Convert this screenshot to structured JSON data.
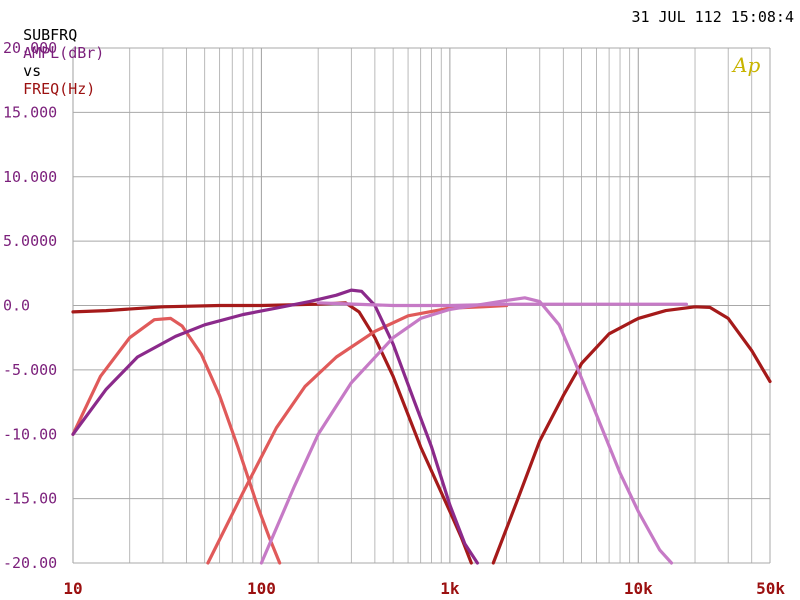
{
  "header": {
    "prefix": "SUBFRQ",
    "y_param": "AMPL(dBr)",
    "vs": "vs",
    "x_param": "FREQ(Hz)",
    "timestamp": "31 JUL 112 15:08:4"
  },
  "logo_text": "Ap",
  "colors": {
    "y_axis_text": "#7b1f7b",
    "x_axis_text": "#9b1010",
    "grid": "#a8a8a8",
    "logo": "#c8b400"
  },
  "chart_data": {
    "type": "line",
    "xscale": "log",
    "xlim": [
      10,
      50000
    ],
    "ylim": [
      -20,
      20
    ],
    "grid": true,
    "y_ticks": [
      {
        "value": 20,
        "label": "20.000"
      },
      {
        "value": 15,
        "label": "15.000"
      },
      {
        "value": 10,
        "label": "10.000"
      },
      {
        "value": 5,
        "label": "5.0000"
      },
      {
        "value": 0,
        "label": "0.0"
      },
      {
        "value": -5,
        "label": "-5.000"
      },
      {
        "value": -10,
        "label": "-10.00"
      },
      {
        "value": -15,
        "label": "-15.00"
      },
      {
        "value": -20,
        "label": "-20.00"
      }
    ],
    "x_ticks": [
      {
        "value": 10,
        "label": "10"
      },
      {
        "value": 100,
        "label": "100"
      },
      {
        "value": 1000,
        "label": "1k"
      },
      {
        "value": 10000,
        "label": "10k"
      },
      {
        "value": 50000,
        "label": "50k"
      }
    ],
    "series": [
      {
        "color": "#a51a1a",
        "points": [
          [
            10,
            -0.5
          ],
          [
            15,
            -0.4
          ],
          [
            30,
            -0.1
          ],
          [
            60,
            0.0
          ],
          [
            100,
            0.0
          ],
          [
            200,
            0.1
          ],
          [
            280,
            0.2
          ],
          [
            330,
            -0.5
          ],
          [
            400,
            -2.5
          ],
          [
            500,
            -5.5
          ],
          [
            700,
            -11
          ],
          [
            1000,
            -16
          ],
          [
            1150,
            -18
          ],
          [
            1300,
            -20
          ]
        ]
      },
      {
        "color": "#a51a1a",
        "points": [
          [
            1700,
            -20
          ],
          [
            2300,
            -15
          ],
          [
            3000,
            -10.5
          ],
          [
            4000,
            -7
          ],
          [
            5000,
            -4.5
          ],
          [
            7000,
            -2.2
          ],
          [
            10000,
            -1.0
          ],
          [
            14000,
            -0.4
          ],
          [
            20000,
            -0.1
          ],
          [
            24000,
            -0.15
          ],
          [
            30000,
            -1.0
          ],
          [
            40000,
            -3.5
          ],
          [
            50000,
            -5.9
          ]
        ]
      },
      {
        "color": "#e05a5a",
        "points": [
          [
            10,
            -10
          ],
          [
            14,
            -5.5
          ],
          [
            20,
            -2.5
          ],
          [
            27,
            -1.1
          ],
          [
            33,
            -1.0
          ],
          [
            38,
            -1.6
          ],
          [
            48,
            -3.8
          ],
          [
            60,
            -7
          ],
          [
            75,
            -11
          ],
          [
            95,
            -15.5
          ],
          [
            110,
            -18
          ],
          [
            125,
            -20
          ]
        ]
      },
      {
        "color": "#e05a5a",
        "points": [
          [
            52,
            -20
          ],
          [
            80,
            -14.5
          ],
          [
            120,
            -9.5
          ],
          [
            170,
            -6.3
          ],
          [
            250,
            -4.0
          ],
          [
            400,
            -2.0
          ],
          [
            600,
            -0.8
          ],
          [
            1000,
            -0.2
          ],
          [
            1500,
            -0.1
          ],
          [
            2000,
            0.0
          ]
        ]
      },
      {
        "color": "#8b2a8b",
        "points": [
          [
            10,
            -10
          ],
          [
            15,
            -6.5
          ],
          [
            22,
            -4
          ],
          [
            35,
            -2.4
          ],
          [
            50,
            -1.5
          ],
          [
            80,
            -0.7
          ],
          [
            120,
            -0.2
          ],
          [
            180,
            0.3
          ],
          [
            250,
            0.8
          ],
          [
            300,
            1.2
          ],
          [
            340,
            1.1
          ],
          [
            400,
            0.0
          ],
          [
            500,
            -3
          ],
          [
            650,
            -7.5
          ],
          [
            800,
            -11
          ],
          [
            1000,
            -15.5
          ],
          [
            1200,
            -18.5
          ],
          [
            1400,
            -20
          ]
        ]
      },
      {
        "color": "#c67ac6",
        "points": [
          [
            100,
            -20
          ],
          [
            150,
            -14
          ],
          [
            200,
            -10
          ],
          [
            300,
            -6
          ],
          [
            500,
            -2.5
          ],
          [
            700,
            -1.0
          ],
          [
            1000,
            -0.3
          ],
          [
            1500,
            0.1
          ],
          [
            2000,
            0.4
          ],
          [
            2500,
            0.6
          ],
          [
            3000,
            0.3
          ],
          [
            3800,
            -1.5
          ],
          [
            4500,
            -4
          ],
          [
            6000,
            -8.5
          ],
          [
            8000,
            -13
          ],
          [
            10000,
            -16
          ],
          [
            13000,
            -19
          ],
          [
            15000,
            -20
          ]
        ]
      },
      {
        "color": "#c67ac6",
        "points": [
          [
            200,
            0.2
          ],
          [
            500,
            0.0
          ],
          [
            1000,
            0.0
          ],
          [
            2000,
            0.1
          ],
          [
            4000,
            0.1
          ],
          [
            8000,
            0.1
          ],
          [
            12000,
            0.1
          ],
          [
            18000,
            0.1
          ]
        ]
      }
    ]
  }
}
